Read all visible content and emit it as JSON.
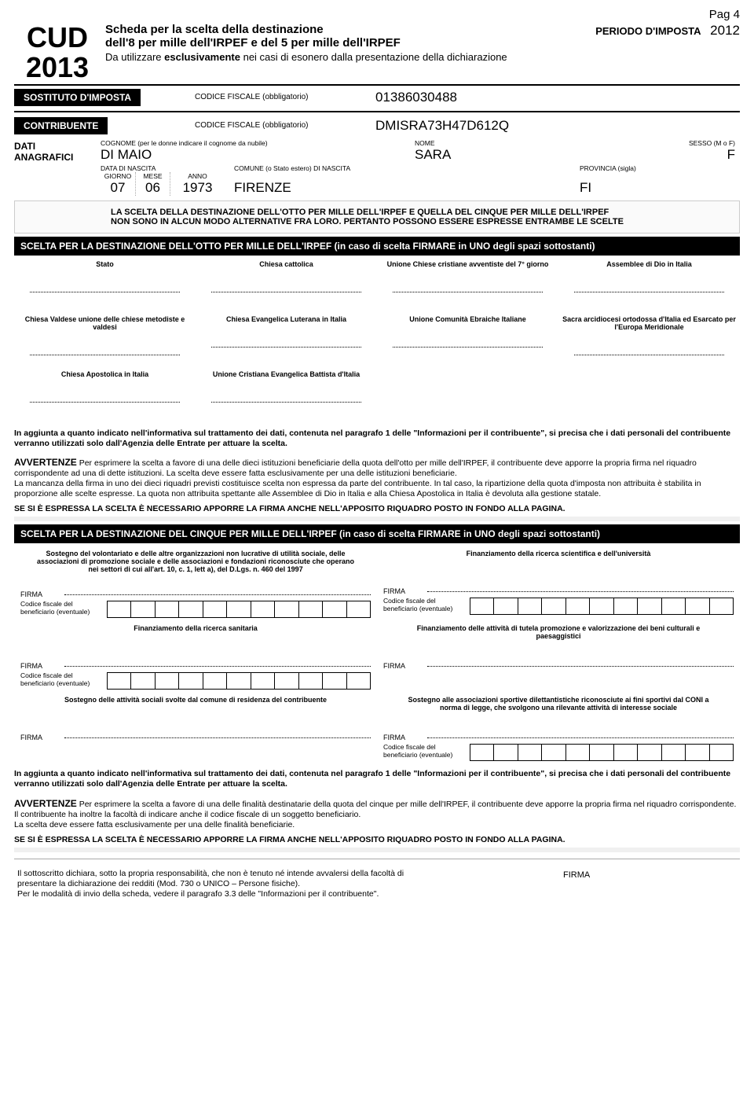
{
  "page_label": "Pag 4",
  "cud_line1": "CUD",
  "cud_line2": "2013",
  "header_title_l1": "Scheda per la scelta della destinazione",
  "header_title_l2": "dell'8 per mille dell'IRPEF e del 5 per mille dell'IRPEF",
  "header_sub_pre": "Da utilizzare ",
  "header_sub_bold": "esclusivamente",
  "header_sub_post": " nei casi di esonero dalla presentazione della dichiarazione",
  "periodo_label": "PERIODO D'IMPOSTA",
  "periodo_year": "2012",
  "sostituto_label": "SOSTITUTO D'IMPOSTA",
  "contribuente_label": "CONTRIBUENTE",
  "cf_obblig": "CODICE FISCALE (obbligatorio)",
  "sostituto_cf": "01386030488",
  "contribuente_cf": "DMISRA73H47D612Q",
  "dati_anag_l1": "DATI",
  "dati_anag_l2": "ANAGRAFICI",
  "cognome_label": "COGNOME (per le donne indicare il cognome da nubile)",
  "cognome_val": "DI MAIO",
  "nome_label": "NOME",
  "nome_val": "SARA",
  "sesso_label": "SESSO (M o F)",
  "sesso_val": "F",
  "data_nascita_label": "DATA DI NASCITA",
  "giorno_label": "GIORNO",
  "mese_label": "MESE",
  "anno_label": "ANNO",
  "giorno_val": "07",
  "mese_val": "06",
  "anno_val": "1973",
  "comune_label": "COMUNE (o Stato estero) DI NASCITA",
  "comune_val": "FIRENZE",
  "provincia_label": "PROVINCIA (sigla)",
  "provincia_val": "FI",
  "lightbox_l1": "LA SCELTA DELLA DESTINAZIONE DELL'OTTO PER MILLE DELL'IRPEF E QUELLA DEL CINQUE PER MILLE DELL'IRPEF",
  "lightbox_l2": "NON SONO IN ALCUN MODO ALTERNATIVE FRA LORO. PERTANTO POSSONO ESSERE ESPRESSE ENTRAMBE LE SCELTE",
  "otto_header": "SCELTA PER LA DESTINAZIONE DELL'OTTO PER MILLE DELL'IRPEF (in caso di scelta FIRMARE in UNO degli spazi sottostanti)",
  "otto_opts": [
    "Stato",
    "Chiesa cattolica",
    "Unione Chiese cristiane avventiste del 7° giorno",
    "Assemblee di Dio in Italia",
    "Chiesa Valdese unione delle chiese metodiste e valdesi",
    "Chiesa Evangelica Luterana in Italia",
    "Unione Comunità Ebraiche Italiane",
    "Sacra arcidiocesi ortodossa d'Italia ed Esarcato per l'Europa Meridionale",
    "Chiesa Apostolica in Italia",
    "Unione Cristiana Evangelica Battista d'Italia"
  ],
  "otto_para1": "In aggiunta a quanto indicato nell'informativa sul trattamento dei dati, contenuta nel paragrafo 1 delle \"Informazioni per il contribuente\", si precisa che i dati personali del contribuente verranno utilizzati solo dall'Agenzia delle Entrate per attuare la scelta.",
  "avvertenze_label": "AVVERTENZE",
  "otto_avv": "Per esprimere la scelta a favore di una delle dieci istituzioni beneficiarie della quota dell'otto per mille dell'IRPEF, il contribuente deve apporre la propria firma nel riquadro corrispondente ad una di dette istituzioni. La scelta deve essere fatta esclusivamente per una delle istituzioni beneficiarie.\nLa mancanza della firma in uno dei dieci riquadri previsti costituisce scelta non espressa da parte del contribuente. In tal caso, la ripartizione della quota d'imposta non attribuita è stabilita in proporzione alle scelte espresse. La quota non attribuita spettante alle Assemblee di Dio in Italia e alla Chiesa Apostolica in Italia è devoluta alla gestione statale.",
  "se_espressa": "SE SI È ESPRESSA LA SCELTA È NECESSARIO APPORRE LA FIRMA ANCHE NELL'APPOSITO RIQUADRO POSTO IN FONDO ALLA PAGINA.",
  "cinque_header": "SCELTA PER LA DESTINAZIONE DEL CINQUE PER MILLE DELL'IRPEF (in caso di scelta FIRMARE in UNO degli spazi sottostanti)",
  "cinque_blocks": [
    {
      "left": "Sostegno del volontariato e delle altre organizzazioni non lucrative di utilità sociale, delle associazioni di promozione sociale e delle associazioni e fondazioni riconosciute che operano nei settori di cui all'art. 10, c. 1, lett a), del D.Lgs. n. 460 del 1997",
      "left_cf": true,
      "right": "Finanziamento della ricerca scientifica e dell'università",
      "right_cf": true
    },
    {
      "left": "Finanziamento della ricerca sanitaria",
      "left_cf": true,
      "right": "Finanziamento delle attività di tutela promozione e valorizzazione dei beni culturali e paesaggistici",
      "right_cf": false
    },
    {
      "left": "Sostegno delle attività sociali svolte dal comune di residenza del contribuente",
      "left_cf": false,
      "right": "Sostegno alle associazioni sportive dilettantistiche riconosciute ai fini sportivi dal CONI a norma di legge, che svolgono una rilevante attività di interesse sociale",
      "right_cf": true
    }
  ],
  "firma_label": "FIRMA",
  "cf_benef_label": "Codice fiscale del beneficiario (eventuale)",
  "cinque_para1": "In aggiunta a quanto indicato nell'informativa sul trattamento dei dati, contenuta nel paragrafo 1 delle \"Informazioni per il contribuente\", si precisa che i dati personali del contribuente verranno utilizzati solo dall'Agenzia delle Entrate per attuare la scelta.",
  "cinque_avv": "Per esprimere la scelta a favore di una delle finalità destinatarie della quota del cinque per mille dell'IRPEF, il contribuente deve apporre la propria firma nel riquadro corrispondente. Il contribuente ha inoltre la facoltà di indicare anche il codice fiscale di un soggetto beneficiario.\nLa scelta deve essere fatta esclusivamente per una delle finalità beneficiarie.",
  "decl_text": "Il sottoscritto dichiara, sotto la propria responsabilità, che non è tenuto né intende avvalersi della facoltà di presentare la dichiarazione dei redditi (Mod. 730 o UNICO – Persone fisiche).\nPer le modalità di invio della scheda, vedere il paragrafo 3.3 delle \"Informazioni per il contribuente\".",
  "decl_firma": "FIRMA"
}
